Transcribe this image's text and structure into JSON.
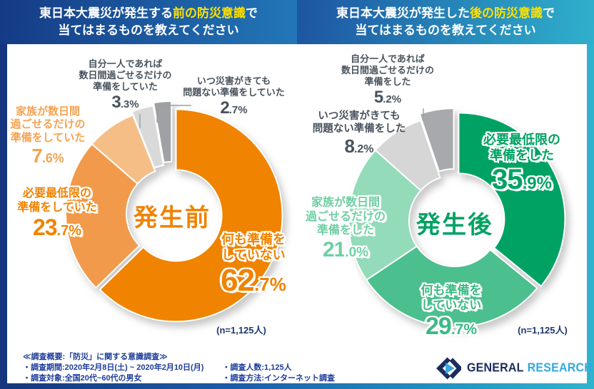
{
  "header": {
    "left": {
      "line1_pre": "東日本大震災が発生する",
      "line1_hl": "前の防災意識",
      "line1_post": "で",
      "line2": "当てはまるものを教えてください"
    },
    "right": {
      "line1_pre": "東日本大震災が発生した",
      "line1_hl": "後の防災意識",
      "line1_post": "で",
      "line2": "当てはまるものを教えてください"
    }
  },
  "colors": {
    "accent_before": "#F08300",
    "accent_after": "#00A263",
    "highlight": "#FFE100"
  },
  "chart_data": [
    {
      "type": "pie",
      "subtype": "donut",
      "title": "発生前",
      "n_label": "(n=1,125人)",
      "segments": [
        {
          "label": "何も準備をしていない",
          "label_lines": [
            "何も準備を",
            "していない"
          ],
          "pct": 62.7,
          "color": "#F08300"
        },
        {
          "label": "必要最低限の準備をしていた",
          "label_lines": [
            "必要最低限の",
            "準備をしていた"
          ],
          "pct": 23.7,
          "color": "#F29A4B"
        },
        {
          "label": "家族が数日間過ごせるだけの準備をしていた",
          "label_lines": [
            "家族が数日間",
            "過ごせるだけの",
            "準備をしていた"
          ],
          "pct": 7.6,
          "color": "#F6BE87"
        },
        {
          "label": "自分一人であれば数日間過ごせるだけの準備をしていた",
          "label_lines": [
            "自分一人であれば",
            "数日間過ごせるだけの",
            "準備をしていた"
          ],
          "pct": 3.3,
          "color": "#D9D9D9"
        },
        {
          "label": "いつ災害がきても問題ない準備をしていた",
          "label_lines": [
            "いつ災害がきても",
            "問題ない準備をしていた"
          ],
          "pct": 2.7,
          "color": "#9FA1A4"
        }
      ]
    },
    {
      "type": "pie",
      "subtype": "donut",
      "title": "発生後",
      "n_label": "(n=1,125人)",
      "segments": [
        {
          "label": "必要最低限の準備をした",
          "label_lines": [
            "必要最低限の",
            "準備をした"
          ],
          "pct": 35.9,
          "color": "#00A263"
        },
        {
          "label": "何も準備をしていない",
          "label_lines": [
            "何も準備を",
            "していない"
          ],
          "pct": 29.7,
          "color": "#4BBF8D"
        },
        {
          "label": "家族が数日間過ごせるだけの準備をした",
          "label_lines": [
            "家族が数日間",
            "過ごせるだけの",
            "準備をした"
          ],
          "pct": 21.0,
          "color": "#93DBB9"
        },
        {
          "label": "いつ災害がきても問題ない準備をした",
          "label_lines": [
            "いつ災害がきても",
            "問題ない準備をした"
          ],
          "pct": 8.2,
          "color": "#D6D6D6"
        },
        {
          "label": "自分一人であれば数日間過ごせるだけの準備をした",
          "label_lines": [
            "自分一人であれば",
            "数日間過ごせるだけの",
            "準備をした"
          ],
          "pct": 5.2,
          "color": "#A7A9AC"
        }
      ]
    }
  ],
  "footer": {
    "heading": "≪調査概要:「防災」に関する意識調査≫",
    "col1": [
      "・調査期間:2020年2月8日(土) ~ 2020年2月10日(月)",
      "・調査対象:全国20代~60代の男女"
    ],
    "col2": [
      "・調査人数:1,125人",
      "・調査方法:インターネット調査"
    ]
  },
  "logo": {
    "primary": "GENERAL",
    "secondary": "RESEARCH"
  }
}
